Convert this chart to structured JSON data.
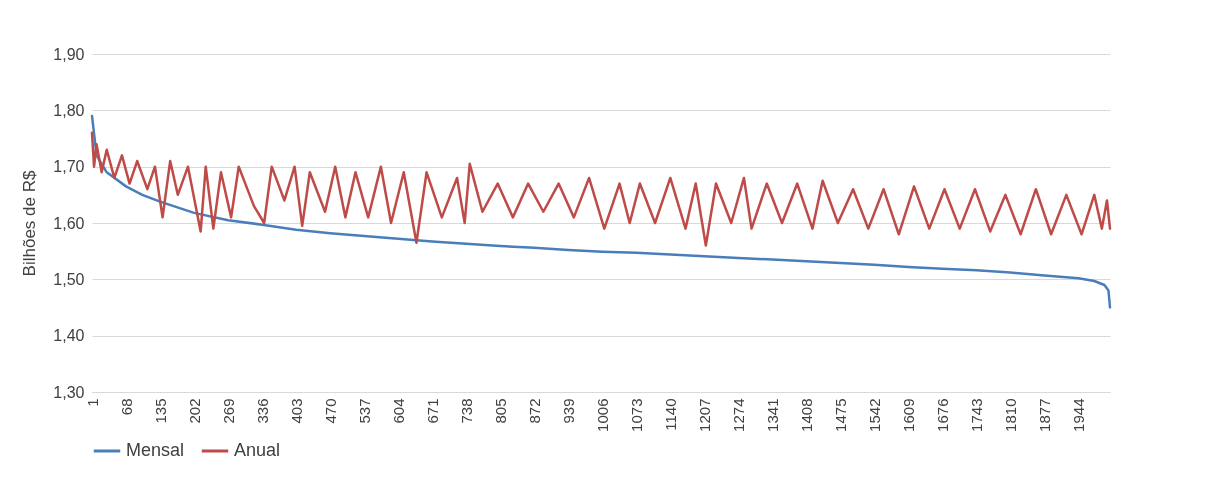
{
  "chart_data": {
    "type": "line",
    "ylabel": "Bilhões de R$",
    "xlim": [
      1,
      2006
    ],
    "xticks": [
      1,
      68,
      135,
      202,
      269,
      336,
      403,
      470,
      537,
      604,
      671,
      738,
      805,
      872,
      939,
      1006,
      1073,
      1140,
      1207,
      1274,
      1341,
      1408,
      1475,
      1542,
      1609,
      1676,
      1743,
      1810,
      1877,
      1944
    ],
    "ylim": [
      1.3,
      1.9
    ],
    "yticks": [
      {
        "value": 1.3,
        "label": "1,30"
      },
      {
        "value": 1.4,
        "label": "1,40"
      },
      {
        "value": 1.5,
        "label": "1,50"
      },
      {
        "value": 1.6,
        "label": "1,60"
      },
      {
        "value": 1.7,
        "label": "1,70"
      },
      {
        "value": 1.8,
        "label": "1,80"
      },
      {
        "value": 1.9,
        "label": "1,90"
      }
    ],
    "grid": "y",
    "legend": "bottom",
    "marker": "none",
    "line_style": "solid",
    "series": [
      {
        "name": "Mensal",
        "color": "#4a7ebb",
        "x": [
          1,
          10,
          30,
          68,
          100,
          135,
          202,
          269,
          336,
          403,
          470,
          537,
          604,
          671,
          738,
          805,
          872,
          939,
          1006,
          1073,
          1140,
          1207,
          1274,
          1341,
          1408,
          1475,
          1542,
          1609,
          1676,
          1743,
          1810,
          1877,
          1944,
          1975,
          1995,
          2003,
          2006
        ],
        "values": [
          1.79,
          1.72,
          1.69,
          1.665,
          1.65,
          1.638,
          1.618,
          1.605,
          1.597,
          1.588,
          1.582,
          1.577,
          1.572,
          1.567,
          1.563,
          1.559,
          1.556,
          1.552,
          1.549,
          1.547,
          1.544,
          1.541,
          1.538,
          1.535,
          1.532,
          1.529,
          1.526,
          1.522,
          1.519,
          1.516,
          1.512,
          1.507,
          1.502,
          1.497,
          1.49,
          1.48,
          1.45
        ]
      },
      {
        "name": "Anual",
        "color": "#be4b48",
        "x": [
          1,
          5,
          10,
          20,
          30,
          45,
          60,
          75,
          90,
          110,
          125,
          140,
          155,
          170,
          190,
          215,
          225,
          240,
          255,
          275,
          290,
          320,
          340,
          355,
          380,
          400,
          415,
          430,
          460,
          480,
          500,
          520,
          545,
          570,
          590,
          615,
          640,
          660,
          690,
          720,
          735,
          745,
          770,
          800,
          830,
          860,
          890,
          920,
          950,
          980,
          1010,
          1040,
          1060,
          1080,
          1110,
          1140,
          1170,
          1190,
          1210,
          1230,
          1260,
          1285,
          1300,
          1330,
          1360,
          1390,
          1420,
          1440,
          1470,
          1500,
          1530,
          1560,
          1590,
          1620,
          1650,
          1680,
          1710,
          1740,
          1770,
          1800,
          1830,
          1860,
          1890,
          1920,
          1950,
          1975,
          1990,
          2000,
          2006
        ],
        "values": [
          1.76,
          1.7,
          1.74,
          1.69,
          1.73,
          1.68,
          1.72,
          1.67,
          1.71,
          1.66,
          1.7,
          1.61,
          1.71,
          1.65,
          1.7,
          1.585,
          1.7,
          1.59,
          1.69,
          1.61,
          1.7,
          1.63,
          1.6,
          1.7,
          1.64,
          1.7,
          1.595,
          1.69,
          1.62,
          1.7,
          1.61,
          1.69,
          1.61,
          1.7,
          1.6,
          1.69,
          1.565,
          1.69,
          1.61,
          1.68,
          1.6,
          1.705,
          1.62,
          1.67,
          1.61,
          1.67,
          1.62,
          1.67,
          1.61,
          1.68,
          1.59,
          1.67,
          1.6,
          1.67,
          1.6,
          1.68,
          1.59,
          1.67,
          1.56,
          1.67,
          1.6,
          1.68,
          1.59,
          1.67,
          1.6,
          1.67,
          1.59,
          1.675,
          1.6,
          1.66,
          1.59,
          1.66,
          1.58,
          1.665,
          1.59,
          1.66,
          1.59,
          1.66,
          1.585,
          1.65,
          1.58,
          1.66,
          1.58,
          1.65,
          1.58,
          1.65,
          1.59,
          1.64,
          1.59
        ]
      }
    ]
  }
}
